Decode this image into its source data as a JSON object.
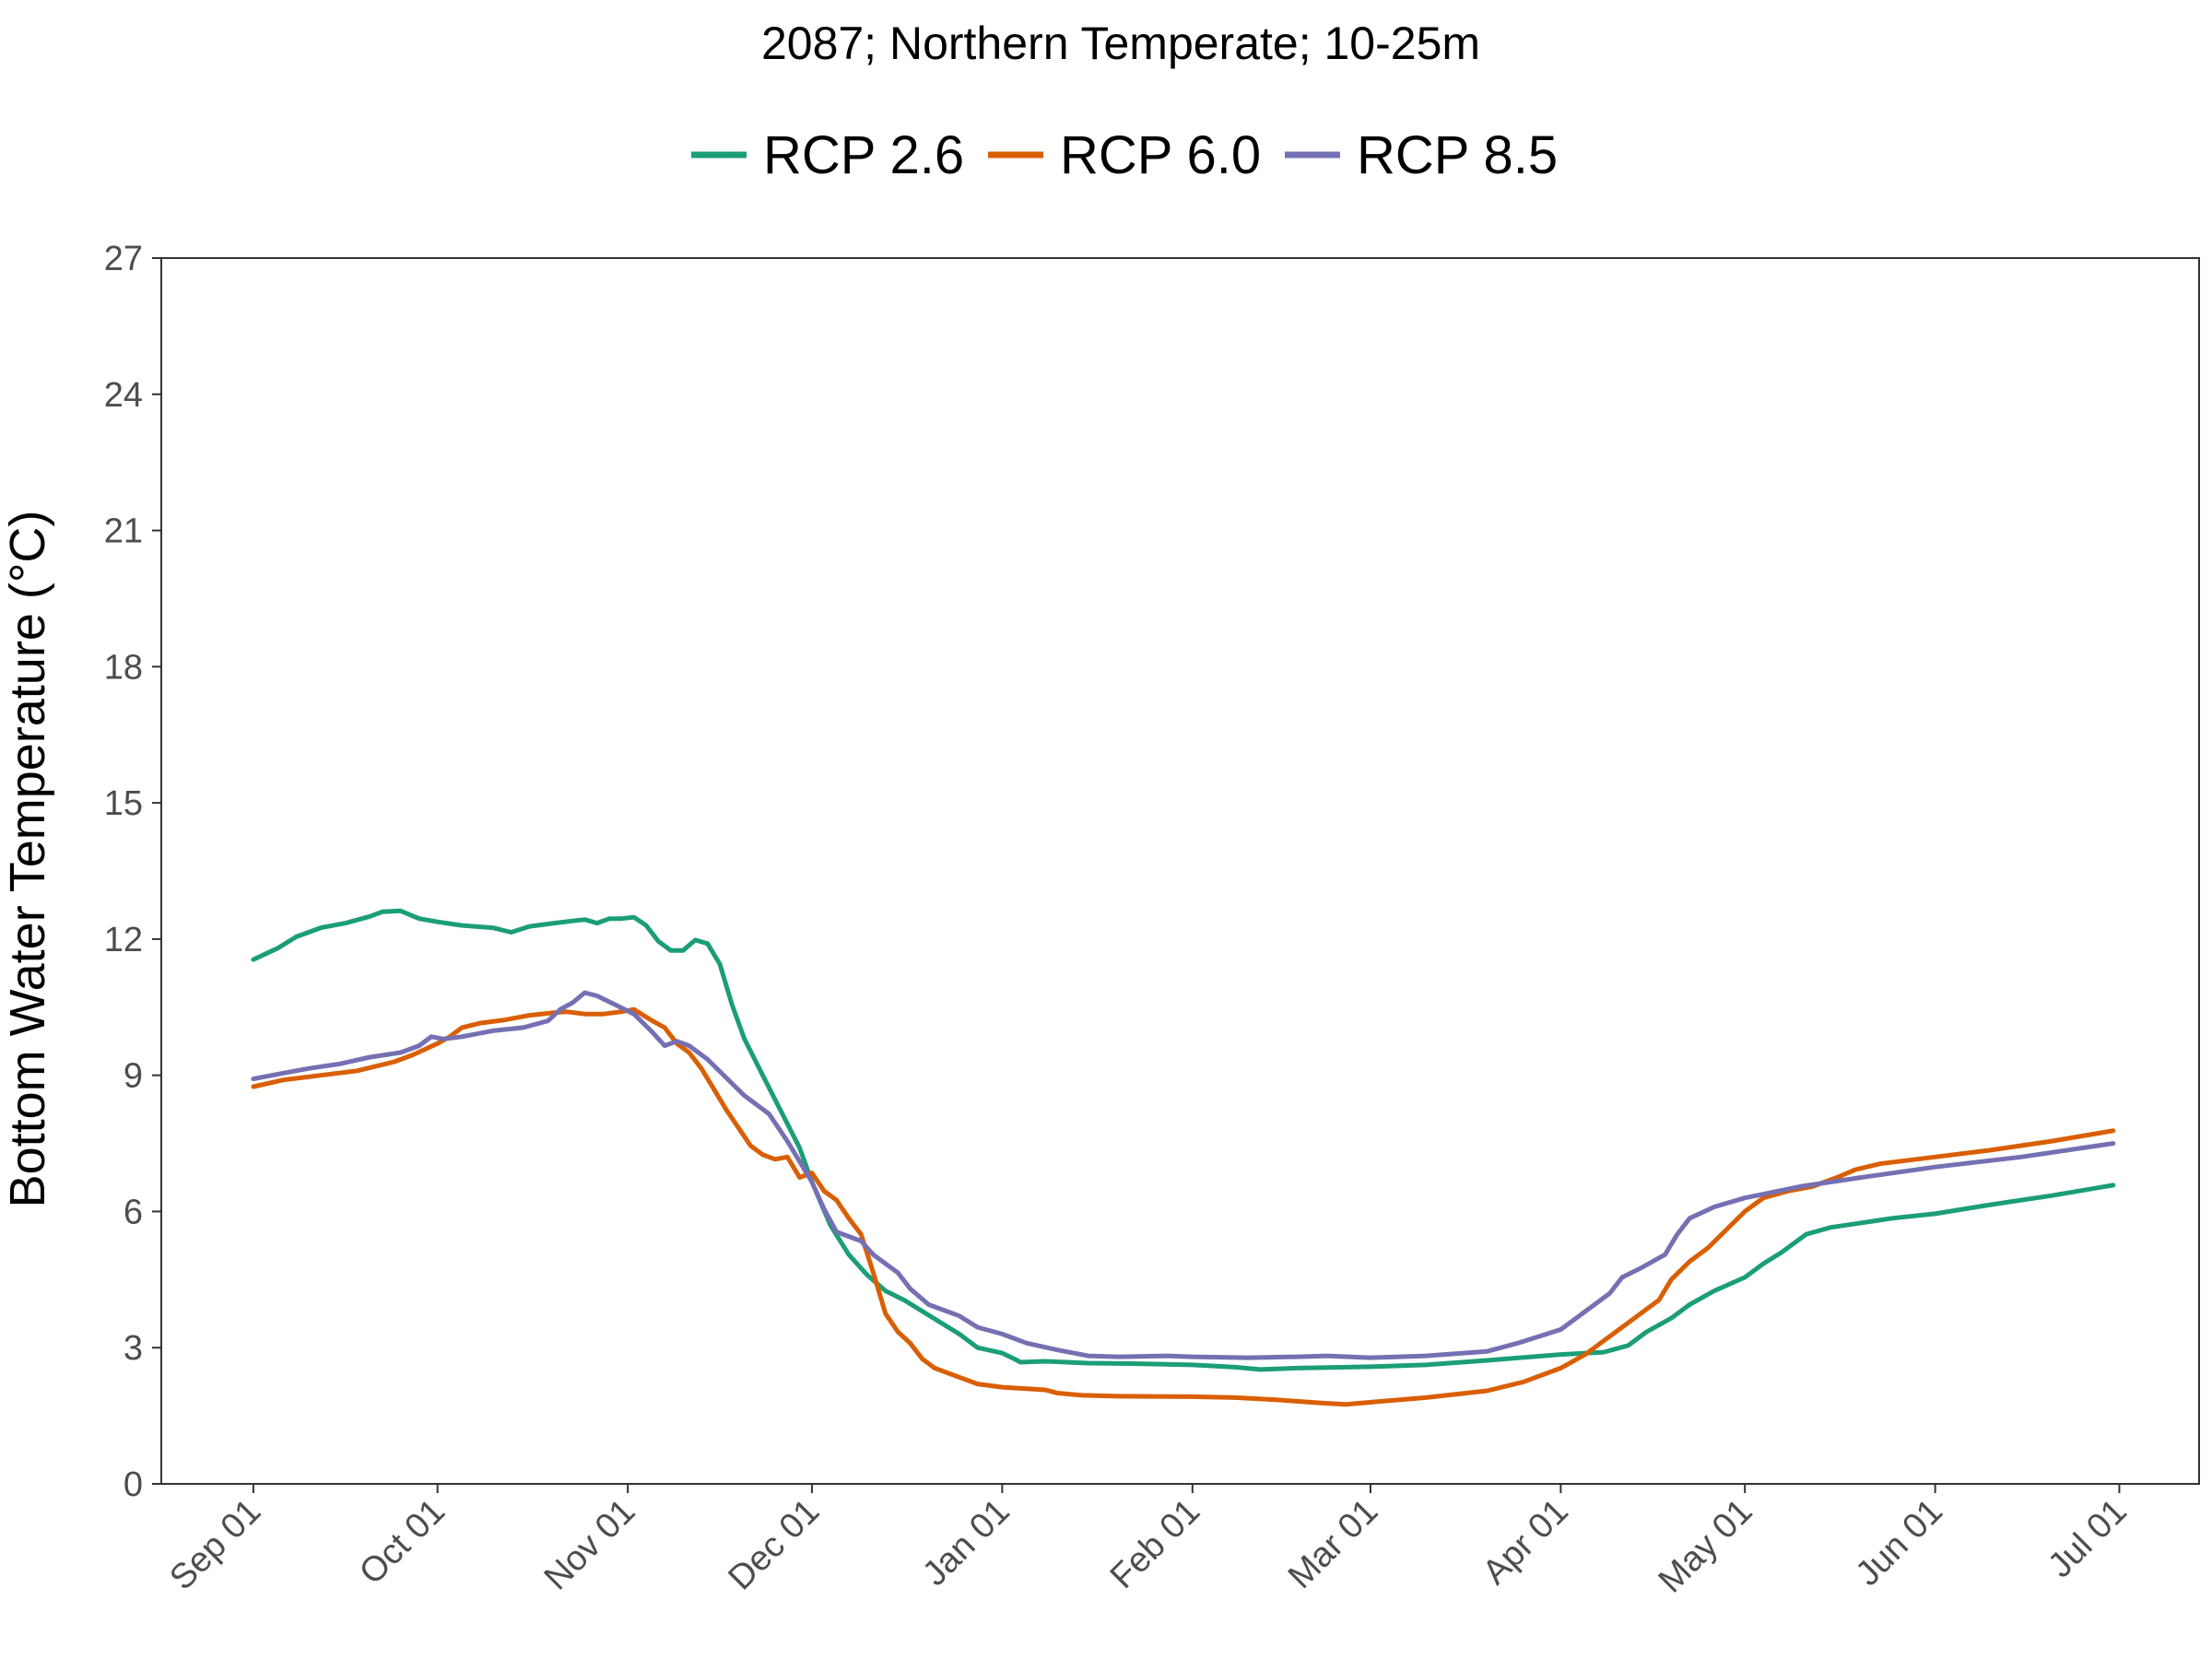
{
  "chart_data": {
    "type": "line",
    "title": "2087;  Northern Temperate;  10-25m",
    "xlabel": "",
    "ylabel": "Bottom Water Temperature (°C)",
    "ylim": [
      0,
      27
    ],
    "y_ticks": [
      "0",
      "3",
      "6",
      "9",
      "12",
      "15",
      "18",
      "21",
      "24",
      "27"
    ],
    "x_ticks": [
      {
        "label": "Sep 01",
        "date": "2087-09-01"
      },
      {
        "label": "Oct 01",
        "date": "2087-10-01"
      },
      {
        "label": "Nov 01",
        "date": "2087-11-01"
      },
      {
        "label": "Dec 01",
        "date": "2087-12-01"
      },
      {
        "label": "Jan 01",
        "date": "2088-01-01"
      },
      {
        "label": "Feb 01",
        "date": "2088-02-01"
      },
      {
        "label": "Mar 01",
        "date": "2088-03-01"
      },
      {
        "label": "Apr 01",
        "date": "2088-04-01"
      },
      {
        "label": "May 01",
        "date": "2088-05-01"
      },
      {
        "label": "Jun 01",
        "date": "2088-06-01"
      },
      {
        "label": "Jul 01",
        "date": "2088-07-01"
      }
    ],
    "xlim": [
      "2087-08-17",
      "2088-07-14"
    ],
    "legend_position": "top",
    "grid": false,
    "series": [
      {
        "name": "RCP 2.6",
        "color": "#1b9e77",
        "points": [
          [
            "2087-09-01",
            11.55
          ],
          [
            "2087-09-05",
            11.8
          ],
          [
            "2087-09-08",
            12.05
          ],
          [
            "2087-09-12",
            12.25
          ],
          [
            "2087-09-16",
            12.35
          ],
          [
            "2087-09-20",
            12.5
          ],
          [
            "2087-09-22",
            12.6
          ],
          [
            "2087-09-25",
            12.62
          ],
          [
            "2087-09-28",
            12.45
          ],
          [
            "2087-10-01",
            12.38
          ],
          [
            "2087-10-05",
            12.3
          ],
          [
            "2087-10-10",
            12.25
          ],
          [
            "2087-10-13",
            12.15
          ],
          [
            "2087-10-16",
            12.28
          ],
          [
            "2087-10-20",
            12.35
          ],
          [
            "2087-10-23",
            12.4
          ],
          [
            "2087-10-25",
            12.43
          ],
          [
            "2087-10-27",
            12.35
          ],
          [
            "2087-10-29",
            12.45
          ],
          [
            "2087-10-31",
            12.45
          ],
          [
            "2087-11-02",
            12.48
          ],
          [
            "2087-11-04",
            12.3
          ],
          [
            "2087-11-06",
            11.95
          ],
          [
            "2087-11-08",
            11.75
          ],
          [
            "2087-11-10",
            11.75
          ],
          [
            "2087-11-12",
            11.98
          ],
          [
            "2087-11-14",
            11.9
          ],
          [
            "2087-11-16",
            11.45
          ],
          [
            "2087-11-18",
            10.55
          ],
          [
            "2087-11-20",
            9.8
          ],
          [
            "2087-11-23",
            9.0
          ],
          [
            "2087-11-26",
            8.2
          ],
          [
            "2087-11-29",
            7.4
          ],
          [
            "2087-12-01",
            6.65
          ],
          [
            "2087-12-04",
            5.7
          ],
          [
            "2087-12-07",
            5.05
          ],
          [
            "2087-12-10",
            4.6
          ],
          [
            "2087-12-13",
            4.25
          ],
          [
            "2087-12-16",
            4.05
          ],
          [
            "2087-12-19",
            3.8
          ],
          [
            "2087-12-22",
            3.55
          ],
          [
            "2087-12-25",
            3.3
          ],
          [
            "2087-12-28",
            3.0
          ],
          [
            "2088-01-01",
            2.88
          ],
          [
            "2088-01-03",
            2.75
          ],
          [
            "2088-01-04",
            2.68
          ],
          [
            "2088-01-08",
            2.7
          ],
          [
            "2088-01-15",
            2.66
          ],
          [
            "2088-01-22",
            2.65
          ],
          [
            "2088-02-01",
            2.62
          ],
          [
            "2088-02-08",
            2.57
          ],
          [
            "2088-02-12",
            2.52
          ],
          [
            "2088-02-18",
            2.55
          ],
          [
            "2088-03-01",
            2.58
          ],
          [
            "2088-03-10",
            2.62
          ],
          [
            "2088-03-20",
            2.72
          ],
          [
            "2088-04-01",
            2.85
          ],
          [
            "2088-04-08",
            2.9
          ],
          [
            "2088-04-12",
            3.05
          ],
          [
            "2088-04-15",
            3.35
          ],
          [
            "2088-04-19",
            3.65
          ],
          [
            "2088-04-22",
            3.95
          ],
          [
            "2088-04-26",
            4.25
          ],
          [
            "2088-05-01",
            4.55
          ],
          [
            "2088-05-04",
            4.85
          ],
          [
            "2088-05-07",
            5.1
          ],
          [
            "2088-05-09",
            5.3
          ],
          [
            "2088-05-11",
            5.5
          ],
          [
            "2088-05-15",
            5.65
          ],
          [
            "2088-05-20",
            5.75
          ],
          [
            "2088-05-25",
            5.85
          ],
          [
            "2088-06-01",
            5.95
          ],
          [
            "2088-06-10",
            6.15
          ],
          [
            "2088-06-20",
            6.35
          ],
          [
            "2088-06-30",
            6.58
          ]
        ]
      },
      {
        "name": "RCP 6.0",
        "color": "#d95f02",
        "points": [
          [
            "2087-09-01",
            8.75
          ],
          [
            "2087-09-06",
            8.9
          ],
          [
            "2087-09-12",
            9.0
          ],
          [
            "2087-09-18",
            9.1
          ],
          [
            "2087-09-21",
            9.2
          ],
          [
            "2087-09-24",
            9.3
          ],
          [
            "2087-09-27",
            9.45
          ],
          [
            "2087-10-01",
            9.7
          ],
          [
            "2087-10-03",
            9.85
          ],
          [
            "2087-10-05",
            10.05
          ],
          [
            "2087-10-08",
            10.15
          ],
          [
            "2087-10-12",
            10.22
          ],
          [
            "2087-10-16",
            10.32
          ],
          [
            "2087-10-20",
            10.38
          ],
          [
            "2087-10-22",
            10.4
          ],
          [
            "2087-10-25",
            10.35
          ],
          [
            "2087-10-28",
            10.35
          ],
          [
            "2087-10-31",
            10.4
          ],
          [
            "2087-11-02",
            10.45
          ],
          [
            "2087-11-05",
            10.2
          ],
          [
            "2087-11-07",
            10.05
          ],
          [
            "2087-11-09",
            9.7
          ],
          [
            "2087-11-11",
            9.5
          ],
          [
            "2087-11-13",
            9.15
          ],
          [
            "2087-11-15",
            8.7
          ],
          [
            "2087-11-17",
            8.25
          ],
          [
            "2087-11-19",
            7.85
          ],
          [
            "2087-11-21",
            7.45
          ],
          [
            "2087-11-23",
            7.25
          ],
          [
            "2087-11-25",
            7.15
          ],
          [
            "2087-11-27",
            7.2
          ],
          [
            "2087-11-29",
            6.75
          ],
          [
            "2087-12-01",
            6.85
          ],
          [
            "2087-12-03",
            6.45
          ],
          [
            "2087-12-05",
            6.25
          ],
          [
            "2087-12-07",
            5.85
          ],
          [
            "2087-12-09",
            5.5
          ],
          [
            "2087-12-11",
            4.65
          ],
          [
            "2087-12-13",
            3.75
          ],
          [
            "2087-12-15",
            3.35
          ],
          [
            "2087-12-17",
            3.1
          ],
          [
            "2087-12-19",
            2.75
          ],
          [
            "2087-12-21",
            2.55
          ],
          [
            "2087-12-24",
            2.4
          ],
          [
            "2087-12-28",
            2.2
          ],
          [
            "2088-01-01",
            2.13
          ],
          [
            "2088-01-08",
            2.07
          ],
          [
            "2088-01-10",
            2.0
          ],
          [
            "2088-01-14",
            1.95
          ],
          [
            "2088-01-20",
            1.93
          ],
          [
            "2088-02-01",
            1.92
          ],
          [
            "2088-02-08",
            1.9
          ],
          [
            "2088-02-15",
            1.85
          ],
          [
            "2088-02-22",
            1.78
          ],
          [
            "2088-02-26",
            1.75
          ],
          [
            "2088-03-03",
            1.82
          ],
          [
            "2088-03-10",
            1.9
          ],
          [
            "2088-03-20",
            2.05
          ],
          [
            "2088-03-26",
            2.25
          ],
          [
            "2088-04-01",
            2.55
          ],
          [
            "2088-04-05",
            2.85
          ],
          [
            "2088-04-08",
            3.15
          ],
          [
            "2088-04-12",
            3.55
          ],
          [
            "2088-04-15",
            3.85
          ],
          [
            "2088-04-17",
            4.05
          ],
          [
            "2088-04-19",
            4.5
          ],
          [
            "2088-04-22",
            4.9
          ],
          [
            "2088-04-25",
            5.2
          ],
          [
            "2088-04-28",
            5.6
          ],
          [
            "2088-05-01",
            6.0
          ],
          [
            "2088-05-04",
            6.3
          ],
          [
            "2088-05-08",
            6.45
          ],
          [
            "2088-05-12",
            6.55
          ],
          [
            "2088-05-16",
            6.75
          ],
          [
            "2088-05-19",
            6.92
          ],
          [
            "2088-05-23",
            7.05
          ],
          [
            "2088-06-01",
            7.2
          ],
          [
            "2088-06-10",
            7.35
          ],
          [
            "2088-06-20",
            7.55
          ],
          [
            "2088-06-30",
            7.78
          ]
        ]
      },
      {
        "name": "RCP 8.5",
        "color": "#7570b3",
        "points": [
          [
            "2087-09-01",
            8.92
          ],
          [
            "2087-09-06",
            9.05
          ],
          [
            "2087-09-10",
            9.15
          ],
          [
            "2087-09-15",
            9.25
          ],
          [
            "2087-09-20",
            9.4
          ],
          [
            "2087-09-25",
            9.5
          ],
          [
            "2087-09-28",
            9.65
          ],
          [
            "2087-09-30",
            9.85
          ],
          [
            "2087-10-02",
            9.8
          ],
          [
            "2087-10-05",
            9.85
          ],
          [
            "2087-10-10",
            9.98
          ],
          [
            "2087-10-15",
            10.05
          ],
          [
            "2087-10-19",
            10.2
          ],
          [
            "2087-10-21",
            10.45
          ],
          [
            "2087-10-23",
            10.6
          ],
          [
            "2087-10-25",
            10.82
          ],
          [
            "2087-10-27",
            10.75
          ],
          [
            "2087-10-30",
            10.55
          ],
          [
            "2087-11-02",
            10.35
          ],
          [
            "2087-11-05",
            9.95
          ],
          [
            "2087-11-07",
            9.65
          ],
          [
            "2087-11-09",
            9.75
          ],
          [
            "2087-11-11",
            9.65
          ],
          [
            "2087-11-14",
            9.35
          ],
          [
            "2087-11-17",
            8.95
          ],
          [
            "2087-11-20",
            8.55
          ],
          [
            "2087-11-24",
            8.15
          ],
          [
            "2087-11-27",
            7.55
          ],
          [
            "2087-12-01",
            6.65
          ],
          [
            "2087-12-03",
            6.05
          ],
          [
            "2087-12-05",
            5.55
          ],
          [
            "2087-12-09",
            5.35
          ],
          [
            "2087-12-11",
            5.05
          ],
          [
            "2087-12-13",
            4.85
          ],
          [
            "2087-12-15",
            4.65
          ],
          [
            "2087-12-17",
            4.3
          ],
          [
            "2087-12-20",
            3.95
          ],
          [
            "2087-12-25",
            3.7
          ],
          [
            "2087-12-28",
            3.45
          ],
          [
            "2088-01-01",
            3.3
          ],
          [
            "2088-01-05",
            3.1
          ],
          [
            "2088-01-10",
            2.95
          ],
          [
            "2088-01-15",
            2.82
          ],
          [
            "2088-01-20",
            2.8
          ],
          [
            "2088-01-28",
            2.82
          ],
          [
            "2088-02-01",
            2.8
          ],
          [
            "2088-02-10",
            2.78
          ],
          [
            "2088-02-18",
            2.8
          ],
          [
            "2088-02-23",
            2.82
          ],
          [
            "2088-03-01",
            2.78
          ],
          [
            "2088-03-10",
            2.82
          ],
          [
            "2088-03-20",
            2.92
          ],
          [
            "2088-03-25",
            3.1
          ],
          [
            "2088-04-01",
            3.4
          ],
          [
            "2088-04-04",
            3.7
          ],
          [
            "2088-04-07",
            4.0
          ],
          [
            "2088-04-09",
            4.2
          ],
          [
            "2088-04-11",
            4.55
          ],
          [
            "2088-04-14",
            4.75
          ],
          [
            "2088-04-18",
            5.05
          ],
          [
            "2088-04-20",
            5.5
          ],
          [
            "2088-04-22",
            5.85
          ],
          [
            "2088-04-26",
            6.1
          ],
          [
            "2088-05-01",
            6.3
          ],
          [
            "2088-05-10",
            6.55
          ],
          [
            "2088-05-20",
            6.75
          ],
          [
            "2088-06-01",
            6.98
          ],
          [
            "2088-06-15",
            7.2
          ],
          [
            "2088-06-30",
            7.5
          ]
        ]
      }
    ]
  }
}
